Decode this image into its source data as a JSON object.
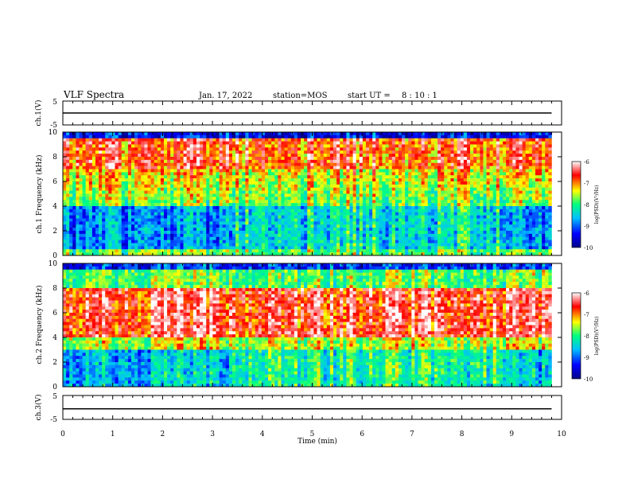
{
  "header": {
    "title": "VLF Spectra",
    "date": "Jan. 17, 2022",
    "station": "station=MOS",
    "start_label": "start  UT =",
    "start_time": "8 : 10 : 1"
  },
  "chart_data": [
    {
      "type": "line",
      "panel": "ch1",
      "ylabel": "ch.1(V)",
      "ylim": [
        -5,
        5
      ],
      "yticks": [
        "5",
        "-5"
      ],
      "xlim": [
        0,
        10
      ],
      "x": [
        0,
        9.8
      ],
      "values": [
        0,
        0
      ],
      "color": "#000000"
    },
    {
      "type": "heatmap",
      "panel": "spec1",
      "ylabel": "ch.1 Frequency (kHz)",
      "ylim": [
        0,
        10
      ],
      "yticks": [
        "0",
        "2",
        "4",
        "6",
        "8",
        "10"
      ],
      "xlim": [
        0,
        10
      ],
      "data_end_min": 9.8,
      "dominant_band_khz": [
        7,
        9
      ],
      "colorbar": {
        "label": "log(PSD)(V²/Hz)",
        "range": [
          -10,
          -6
        ],
        "ticks": [
          "-6",
          "-7",
          "-8",
          "-9",
          "-10"
        ]
      }
    },
    {
      "type": "heatmap",
      "panel": "spec2",
      "ylabel": "ch.2 Frequency (kHz)",
      "ylim": [
        0,
        10
      ],
      "yticks": [
        "0",
        "2",
        "4",
        "6",
        "8",
        "10"
      ],
      "xlim": [
        0,
        10
      ],
      "data_end_min": 9.8,
      "dominant_band_khz": [
        4,
        8
      ],
      "colorbar": {
        "label": "log(PSD)(V²/Hz)",
        "range": [
          -10,
          -6
        ],
        "ticks": [
          "-6",
          "-7",
          "-8",
          "-9",
          "-10"
        ]
      }
    },
    {
      "type": "line",
      "panel": "ch3",
      "ylabel": "ch.3(V)",
      "ylim": [
        -5,
        5
      ],
      "yticks": [
        "5",
        "-5"
      ],
      "xlim": [
        0,
        10
      ],
      "x": [
        0,
        9.8
      ],
      "values": [
        -0.6,
        -0.6
      ],
      "color": "#000000"
    }
  ],
  "x_axis": {
    "label": "Time  (min)",
    "ticks": [
      "0",
      "1",
      "2",
      "3",
      "4",
      "5",
      "6",
      "7",
      "8",
      "9",
      "10"
    ]
  },
  "colors": {
    "colormap": [
      "#000088",
      "#0000ff",
      "#00bfff",
      "#00ff80",
      "#ffff00",
      "#ff0000",
      "#ffffff"
    ]
  }
}
